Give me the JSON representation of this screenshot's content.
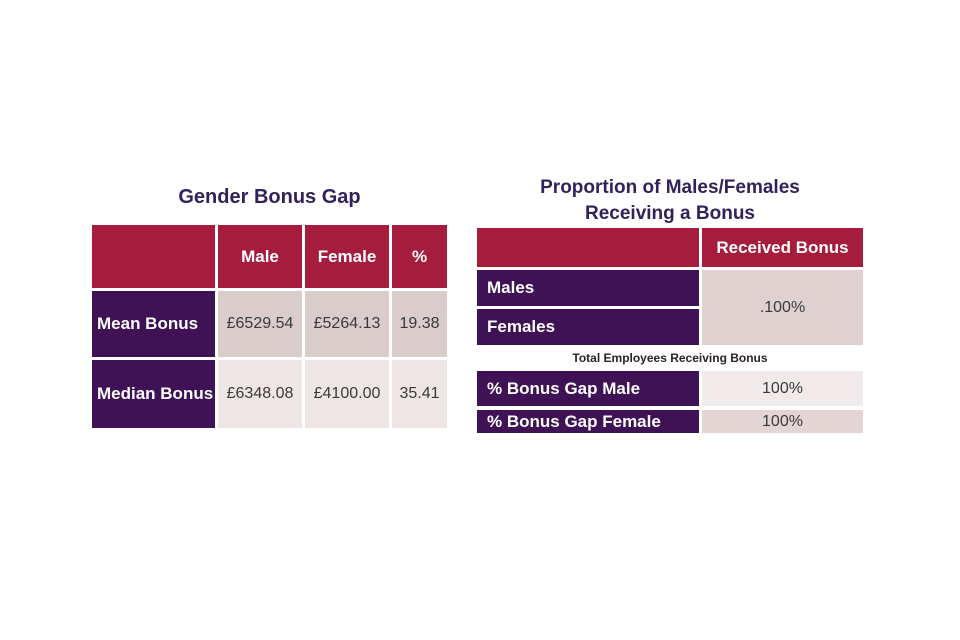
{
  "colors": {
    "crimson_header": "#A61C3C",
    "purple_row": "#3E1254",
    "title_text": "#332259",
    "cell_pink_dark": "#D9CCCA",
    "cell_pink_light": "#EDE6E5",
    "cell_merged": "#DED1CF",
    "cell_gap_male": "#F0EBEA",
    "cell_gap_female": "#E2D5D3",
    "value_text": "#3A3A3A",
    "header_text": "#FFFFFF",
    "caption_text": "#2B2328"
  },
  "left_table": {
    "title": "Gender Bonus Gap",
    "headers": {
      "corner": "",
      "col1": "Male",
      "col2": "Female",
      "col3": "%"
    },
    "rows": [
      {
        "label": "Mean Bonus",
        "male": "£6529.54",
        "female": "£5264.13",
        "pct": "19.38"
      },
      {
        "label": "Median Bonus",
        "male": "£6348.08",
        "female": "£4100.00",
        "pct": "35.41"
      }
    ]
  },
  "right_table": {
    "title_line1": "Proportion of Males/Females",
    "title_line2": "Receiving a Bonus",
    "header_received": "Received Bonus",
    "row_males": "Males",
    "row_females": "Females",
    "merged_value": ".100%",
    "caption": "Total Employees Receiving Bonus",
    "gap_rows": [
      {
        "label": "% Bonus Gap Male",
        "value": "100%"
      },
      {
        "label": "% Bonus Gap Female",
        "value": "100%"
      }
    ]
  },
  "chart_data": [
    {
      "type": "table",
      "title": "Gender Bonus Gap",
      "columns": [
        "",
        "Male",
        "Female",
        "%"
      ],
      "rows": [
        [
          "Mean Bonus",
          6529.54,
          5264.13,
          19.38
        ],
        [
          "Median Bonus",
          6348.08,
          4100.0,
          35.41
        ]
      ],
      "currency": "GBP",
      "notes": "Male and Female columns are bonus amounts in £; % column is the bonus gap percentage"
    },
    {
      "type": "table",
      "title": "Proportion of Males/Females Receiving a Bonus",
      "columns": [
        "",
        "Received Bonus"
      ],
      "rows": [
        [
          "Males",
          "100%"
        ],
        [
          "Females",
          "100%"
        ]
      ],
      "merged_cells": "Males and Females share a single merged Received Bonus cell showing .100%",
      "caption": "Total Employees Receiving Bonus",
      "extra_rows": [
        [
          "% Bonus Gap Male",
          "100%"
        ],
        [
          "% Bonus Gap Female",
          "100%"
        ]
      ]
    }
  ]
}
